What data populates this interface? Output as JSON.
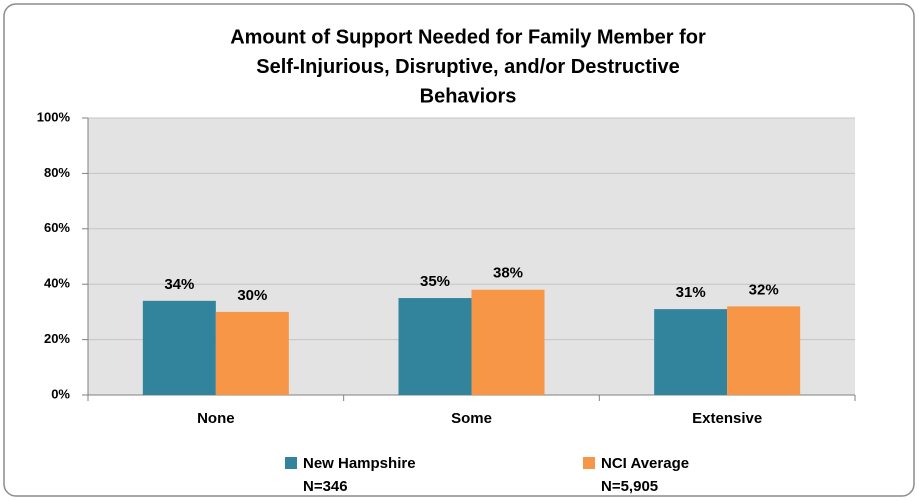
{
  "chart_data": {
    "type": "bar",
    "title": [
      "Amount of Support Needed for Family Member for",
      "Self-Injurious, Disruptive, and/or Destructive",
      "Behaviors"
    ],
    "categories": [
      "None",
      "Some",
      "Extensive"
    ],
    "series": [
      {
        "name": "New Hampshire",
        "sample": "N=346",
        "color": "#31849b",
        "values": [
          34,
          35,
          31
        ],
        "value_labels": [
          "34%",
          "35%",
          "31%"
        ]
      },
      {
        "name": "NCI Average",
        "sample": "N=5,905",
        "color": "#f79646",
        "values": [
          30,
          38,
          32
        ],
        "value_labels": [
          "30%",
          "38%",
          "32%"
        ]
      }
    ],
    "ylim": [
      0,
      100
    ],
    "yticks": [
      {
        "value": 0,
        "label": "0%"
      },
      {
        "value": 20,
        "label": "20%"
      },
      {
        "value": 40,
        "label": "40%"
      },
      {
        "value": 60,
        "label": "60%"
      },
      {
        "value": 80,
        "label": "80%"
      },
      {
        "value": 100,
        "label": "100%"
      }
    ],
    "grid": true,
    "legend": "bottom"
  }
}
